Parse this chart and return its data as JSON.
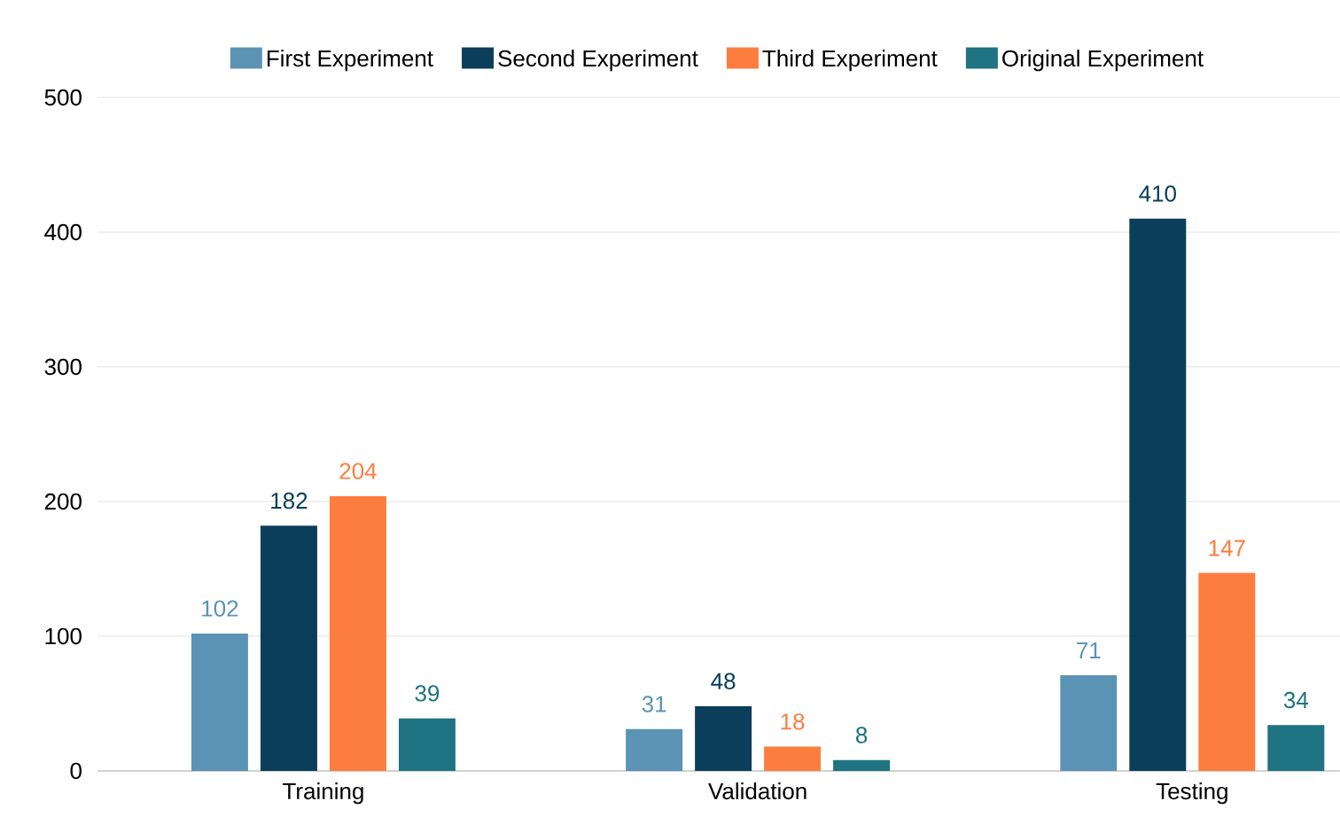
{
  "chart_data": {
    "type": "bar",
    "categories": [
      "Training",
      "Validation",
      "Testing"
    ],
    "series": [
      {
        "name": "First Experiment",
        "color": "#5b93b5",
        "values": [
          102,
          31,
          71
        ]
      },
      {
        "name": "Second Experiment",
        "color": "#0b3e5a",
        "values": [
          182,
          48,
          410
        ]
      },
      {
        "name": "Third Experiment",
        "color": "#fd7d3f",
        "values": [
          204,
          18,
          147
        ]
      },
      {
        "name": "Original Experiment",
        "color": "#1f7382",
        "values": [
          39,
          8,
          34
        ]
      }
    ],
    "ylim": [
      0,
      500
    ],
    "yticks": [
      0,
      100,
      200,
      300,
      400,
      500
    ],
    "grid": "y",
    "legend": "top",
    "data_labels": true
  }
}
